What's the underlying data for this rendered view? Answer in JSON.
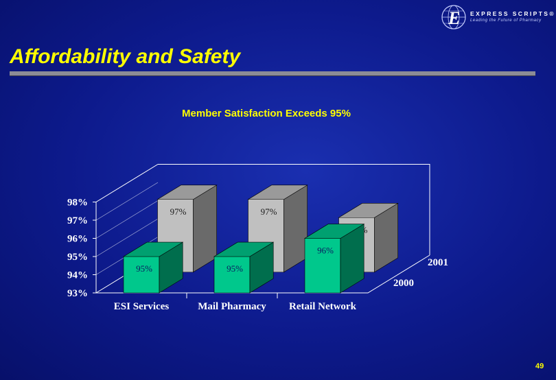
{
  "slide": {
    "title": "Affordability and Safety",
    "page_number": "49"
  },
  "logo": {
    "name": "EXPRESS SCRIPTS®",
    "tagline": "Leading the Future of Pharmacy"
  },
  "colors": {
    "title": "#ffff00",
    "background": "#0d1a8c",
    "series_2000": "#00c88c",
    "series_2001": "#c0c0c0"
  },
  "chart_data": {
    "type": "bar",
    "title": "Member Satisfaction Exceeds 95%",
    "categories": [
      "ESI Services",
      "Mail Pharmacy",
      "Retail Network"
    ],
    "depth_categories": [
      "2000",
      "2001"
    ],
    "series": [
      {
        "name": "2000",
        "values": [
          95,
          95,
          96
        ],
        "labels": [
          "95%",
          "95%",
          "96%"
        ],
        "color": "#00c88c"
      },
      {
        "name": "2001",
        "values": [
          97,
          97,
          96
        ],
        "labels": [
          "97%",
          "97%",
          "96%"
        ],
        "color": "#c0c0c0"
      }
    ],
    "y_ticks": [
      "93%",
      "94%",
      "95%",
      "96%",
      "97%",
      "98%"
    ],
    "ylim": [
      93,
      98
    ],
    "grid": false,
    "legend": "none"
  }
}
